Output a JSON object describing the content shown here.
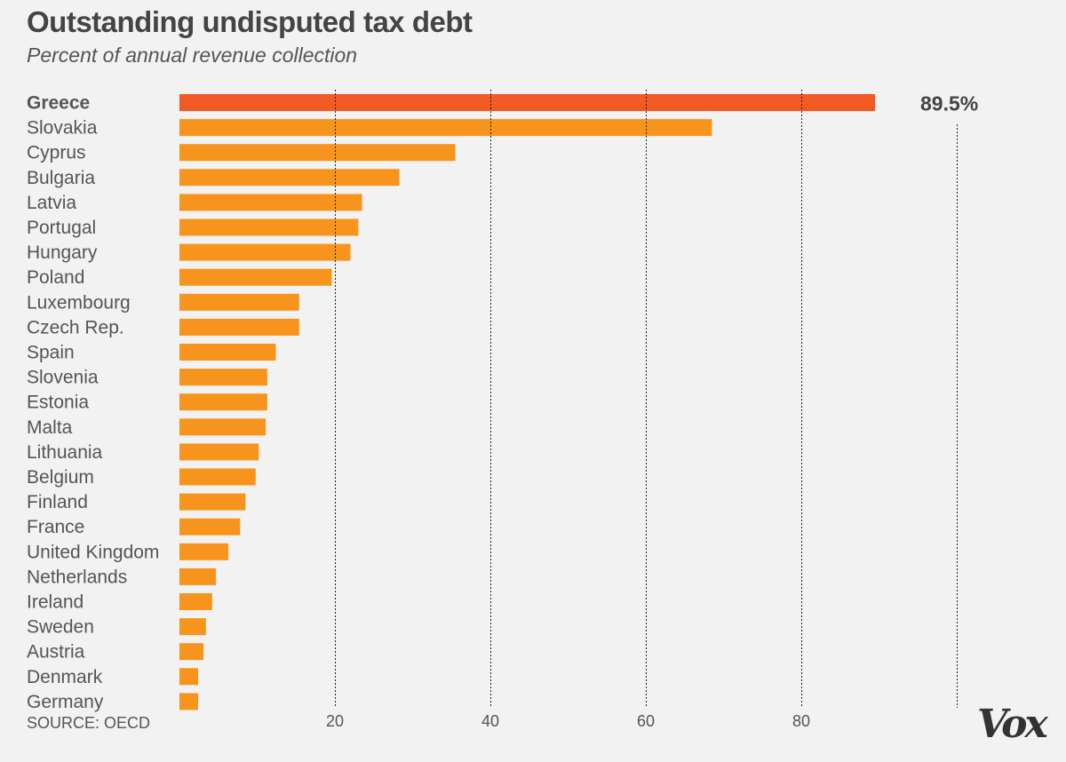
{
  "header": {
    "title": "Outstanding undisputed tax debt",
    "subtitle": "Percent of annual revenue collection"
  },
  "footer": {
    "source": "SOURCE: OECD",
    "logo": "Vox"
  },
  "colors": {
    "bar": "#f7941d",
    "highlight_bar": "#f15a22",
    "background": "#f2f2f2"
  },
  "chart_data": {
    "type": "bar",
    "orientation": "horizontal",
    "title": "Outstanding undisputed tax debt",
    "subtitle": "Percent of annual revenue collection",
    "xlabel": "",
    "ylabel": "",
    "xlim": [
      0,
      100
    ],
    "xticks": [
      20,
      40,
      60,
      80
    ],
    "grid": true,
    "categories": [
      "Greece",
      "Slovakia",
      "Cyprus",
      "Bulgaria",
      "Latvia",
      "Portugal",
      "Hungary",
      "Poland",
      "Luxembourg",
      "Czech Rep.",
      "Spain",
      "Slovenia",
      "Estonia",
      "Malta",
      "Lithuania",
      "Belgium",
      "Finland",
      "France",
      "United Kingdom",
      "Netherlands",
      "Ireland",
      "Sweden",
      "Austria",
      "Denmark",
      "Germany"
    ],
    "values": [
      89.5,
      68.5,
      35.5,
      28.3,
      23.5,
      23.0,
      22.0,
      19.6,
      15.4,
      15.4,
      12.4,
      11.3,
      11.3,
      11.1,
      10.2,
      9.8,
      8.5,
      7.8,
      6.3,
      4.7,
      4.2,
      3.4,
      3.1,
      2.4,
      2.4
    ],
    "highlight": "Greece",
    "data_labels": [
      {
        "category": "Greece",
        "text": "89.5%"
      }
    ]
  }
}
